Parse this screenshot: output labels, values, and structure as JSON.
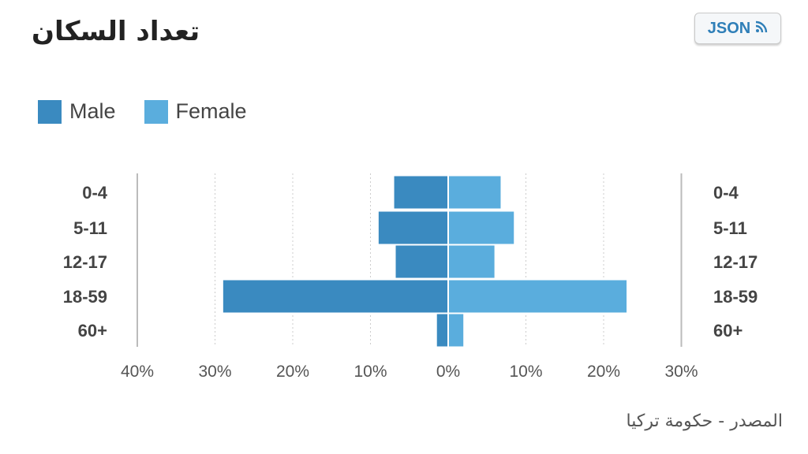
{
  "header": {
    "title": "تعداد السكان",
    "json_button_label": "JSON"
  },
  "footer": {
    "source": "المصدر - حكومة تركيا"
  },
  "colors": {
    "male": "#3a8ac0",
    "female": "#5aaddd",
    "grid": "#cccccc",
    "text": "#444444"
  },
  "icons": {
    "json": "rss-feed-icon"
  },
  "chart_data": {
    "type": "bar",
    "subtype": "population-pyramid",
    "orientation": "horizontal",
    "categories": [
      "0-4",
      "5-11",
      "12-17",
      "18-59",
      "60+"
    ],
    "series": [
      {
        "name": "Male",
        "values": [
          7,
          9,
          6.8,
          29,
          1.5
        ]
      },
      {
        "name": "Female",
        "values": [
          6.8,
          8.5,
          6,
          23,
          2
        ]
      }
    ],
    "x_range_left": [
      0,
      40
    ],
    "x_range_right": [
      0,
      30
    ],
    "x_ticks_left": [
      "40%",
      "30%",
      "20%",
      "10%"
    ],
    "x_tick_center": "0%",
    "x_ticks_right": [
      "10%",
      "20%",
      "30%"
    ],
    "legend_position": "top-left",
    "grid": true
  }
}
